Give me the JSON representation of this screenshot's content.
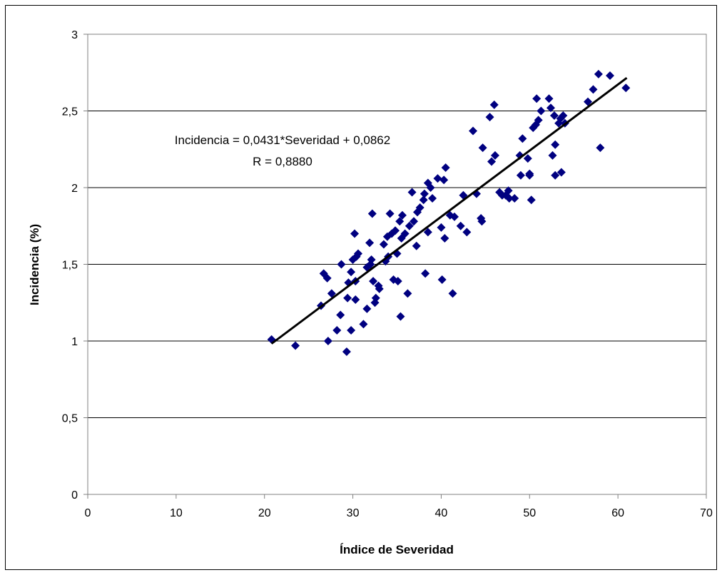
{
  "chart_data": {
    "type": "scatter",
    "title": "",
    "xlabel": "Índice de Severidad",
    "ylabel": "Incidencia (%)",
    "xlim": [
      0,
      70
    ],
    "ylim": [
      0,
      3
    ],
    "x_ticks": [
      0,
      10,
      20,
      30,
      40,
      50,
      60,
      70
    ],
    "y_ticks": [
      0,
      0.5,
      1,
      1.5,
      2,
      2.5,
      3
    ],
    "x_tick_labels": [
      "0",
      "10",
      "20",
      "30",
      "40",
      "50",
      "60",
      "70"
    ],
    "y_tick_labels": [
      "0",
      "0,5",
      "1",
      "1,5",
      "2",
      "2,5",
      "3"
    ],
    "grid": "horizontal",
    "marker_color": "#000080",
    "trendline": {
      "slope": 0.0431,
      "intercept": 0.0862,
      "x_range": [
        20.8,
        61
      ],
      "color": "#000000"
    },
    "annotation": {
      "line1": "Incidencia = 0,0431*Severidad + 0,0862",
      "line2": "R = 0,8880"
    },
    "series": [
      {
        "points": [
          [
            20.8,
            1.01
          ],
          [
            23.5,
            0.97
          ],
          [
            26.4,
            1.23
          ],
          [
            26.7,
            1.44
          ],
          [
            27.1,
            1.41
          ],
          [
            27.2,
            1.0
          ],
          [
            27.6,
            1.31
          ],
          [
            28.2,
            1.07
          ],
          [
            28.6,
            1.17
          ],
          [
            28.7,
            1.5
          ],
          [
            29.3,
            0.93
          ],
          [
            29.4,
            1.28
          ],
          [
            29.5,
            1.38
          ],
          [
            29.8,
            1.07
          ],
          [
            29.8,
            1.45
          ],
          [
            30.0,
            1.53
          ],
          [
            30.2,
            1.7
          ],
          [
            30.3,
            1.27
          ],
          [
            30.3,
            1.39
          ],
          [
            30.4,
            1.55
          ],
          [
            30.6,
            1.57
          ],
          [
            31.2,
            1.11
          ],
          [
            31.6,
            1.21
          ],
          [
            31.6,
            1.48
          ],
          [
            31.9,
            1.64
          ],
          [
            32.0,
            1.5
          ],
          [
            32.1,
            1.53
          ],
          [
            32.2,
            1.83
          ],
          [
            32.3,
            1.39
          ],
          [
            32.5,
            1.25
          ],
          [
            32.6,
            1.28
          ],
          [
            32.9,
            1.36
          ],
          [
            33.0,
            1.34
          ],
          [
            33.5,
            1.63
          ],
          [
            33.7,
            1.52
          ],
          [
            33.9,
            1.68
          ],
          [
            34.0,
            1.55
          ],
          [
            34.2,
            1.83
          ],
          [
            34.4,
            1.7
          ],
          [
            34.6,
            1.4
          ],
          [
            34.8,
            1.72
          ],
          [
            35.0,
            1.57
          ],
          [
            35.1,
            1.39
          ],
          [
            35.3,
            1.78
          ],
          [
            35.4,
            1.16
          ],
          [
            35.5,
            1.67
          ],
          [
            35.6,
            1.82
          ],
          [
            35.9,
            1.7
          ],
          [
            36.2,
            1.31
          ],
          [
            36.4,
            1.75
          ],
          [
            36.7,
            1.97
          ],
          [
            36.9,
            1.78
          ],
          [
            37.2,
            1.62
          ],
          [
            37.3,
            1.84
          ],
          [
            37.6,
            1.87
          ],
          [
            38.0,
            1.92
          ],
          [
            38.1,
            1.96
          ],
          [
            38.2,
            1.44
          ],
          [
            38.5,
            2.03
          ],
          [
            38.5,
            1.71
          ],
          [
            38.8,
            2.0
          ],
          [
            39.0,
            1.93
          ],
          [
            39.6,
            2.06
          ],
          [
            40.0,
            1.74
          ],
          [
            40.1,
            1.4
          ],
          [
            40.3,
            2.05
          ],
          [
            40.4,
            1.67
          ],
          [
            40.5,
            2.13
          ],
          [
            41.0,
            1.82
          ],
          [
            41.3,
            1.31
          ],
          [
            41.5,
            1.81
          ],
          [
            42.2,
            1.75
          ],
          [
            42.5,
            1.95
          ],
          [
            42.9,
            1.71
          ],
          [
            43.6,
            2.37
          ],
          [
            44.0,
            1.96
          ],
          [
            44.5,
            1.8
          ],
          [
            44.6,
            1.78
          ],
          [
            44.7,
            2.26
          ],
          [
            45.5,
            2.46
          ],
          [
            45.7,
            2.17
          ],
          [
            46.0,
            2.54
          ],
          [
            46.1,
            2.21
          ],
          [
            46.6,
            1.97
          ],
          [
            46.9,
            1.95
          ],
          [
            47.3,
            1.95
          ],
          [
            47.6,
            1.98
          ],
          [
            47.7,
            1.93
          ],
          [
            48.3,
            1.93
          ],
          [
            48.9,
            2.21
          ],
          [
            49.0,
            2.08
          ],
          [
            49.2,
            2.32
          ],
          [
            49.8,
            2.19
          ],
          [
            50.0,
            2.09
          ],
          [
            50.0,
            2.08
          ],
          [
            50.2,
            1.92
          ],
          [
            50.4,
            2.39
          ],
          [
            50.7,
            2.41
          ],
          [
            50.8,
            2.58
          ],
          [
            51.0,
            2.44
          ],
          [
            51.3,
            2.5
          ],
          [
            52.2,
            2.58
          ],
          [
            52.4,
            2.52
          ],
          [
            52.6,
            2.21
          ],
          [
            52.8,
            2.47
          ],
          [
            52.9,
            2.08
          ],
          [
            52.9,
            2.28
          ],
          [
            53.3,
            2.42
          ],
          [
            53.5,
            2.45
          ],
          [
            53.6,
            2.1
          ],
          [
            53.8,
            2.47
          ],
          [
            54.0,
            2.42
          ],
          [
            56.6,
            2.56
          ],
          [
            57.2,
            2.64
          ],
          [
            57.8,
            2.74
          ],
          [
            58.0,
            2.26
          ],
          [
            59.1,
            2.73
          ],
          [
            60.9,
            2.65
          ]
        ]
      }
    ]
  }
}
